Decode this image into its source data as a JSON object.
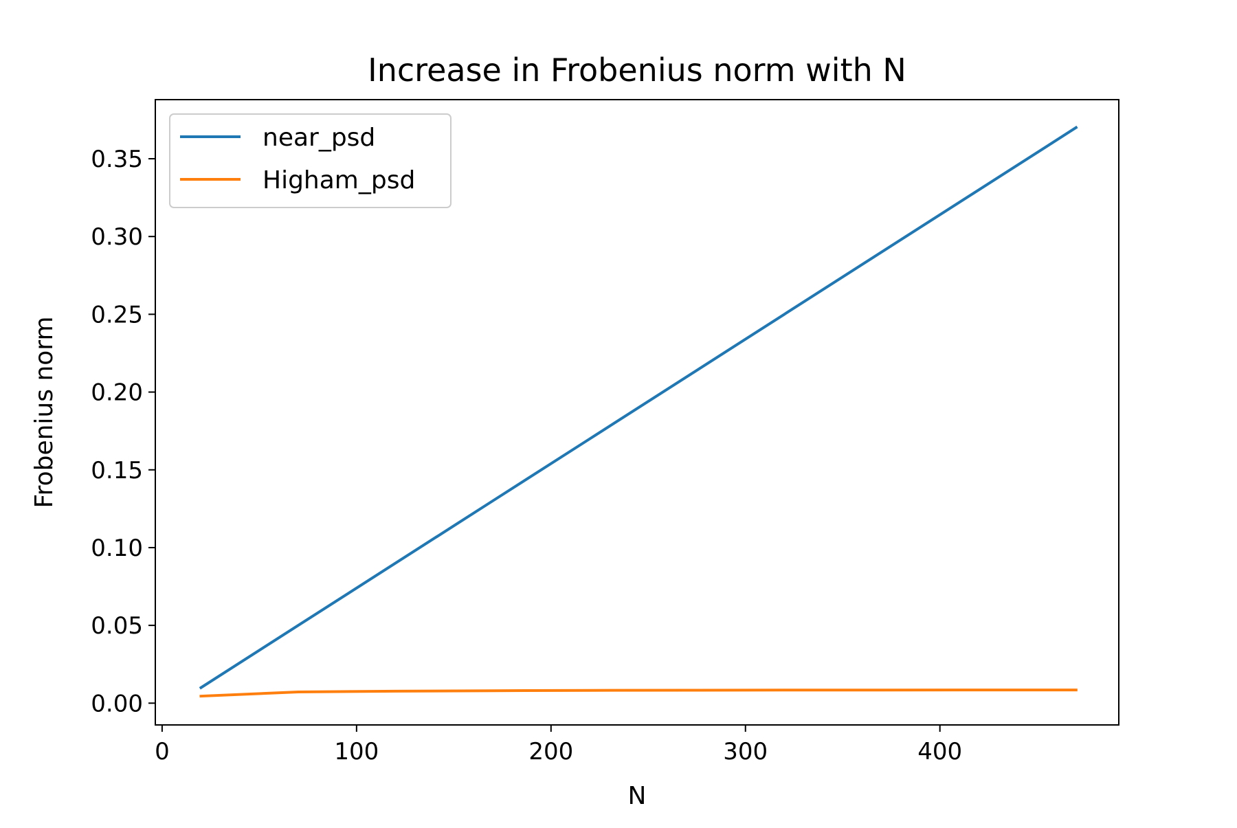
{
  "chart_data": {
    "type": "line",
    "title": "Increase in Frobenius norm with N",
    "xlabel": "N",
    "ylabel": "Frobenius norm",
    "xlim": [
      -3.5,
      492
    ],
    "ylim": [
      -0.014,
      0.388
    ],
    "xticks": [
      0,
      100,
      200,
      300,
      400
    ],
    "xtick_labels": [
      "0",
      "100",
      "200",
      "300",
      "400"
    ],
    "yticks": [
      0.0,
      0.05,
      0.1,
      0.15,
      0.2,
      0.25,
      0.3,
      0.35
    ],
    "ytick_labels": [
      "0.00",
      "0.05",
      "0.10",
      "0.15",
      "0.20",
      "0.25",
      "0.30",
      "0.35"
    ],
    "grid": false,
    "legend_position": "upper-left",
    "series": [
      {
        "name": "near_psd",
        "color": "#1f77b4",
        "x": [
          20,
          70,
          120,
          170,
          220,
          270,
          320,
          370,
          420,
          470
        ],
        "y": [
          0.01,
          0.05,
          0.09,
          0.13,
          0.17,
          0.21,
          0.25,
          0.29,
          0.33,
          0.37
        ]
      },
      {
        "name": "Higham_psd",
        "color": "#ff7f0e",
        "x": [
          20,
          70,
          120,
          170,
          220,
          270,
          320,
          370,
          420,
          470
        ],
        "y": [
          0.0045,
          0.0072,
          0.0077,
          0.008,
          0.0082,
          0.0083,
          0.0084,
          0.0084,
          0.0085,
          0.0085
        ]
      }
    ]
  }
}
